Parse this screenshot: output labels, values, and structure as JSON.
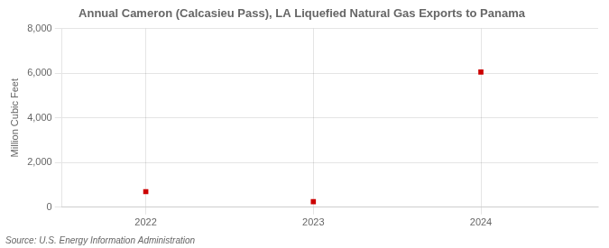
{
  "chart_data": {
    "type": "scatter",
    "title": "Annual Cameron (Calcasieu Pass), LA Liquefied Natural Gas Exports to Panama",
    "ylabel": "Million Cubic Feet",
    "source": "Source: U.S. Energy Information Administration",
    "x": [
      2022,
      2023,
      2024
    ],
    "values": [
      700,
      250,
      6050
    ],
    "color": "#cc0000",
    "marker": "square",
    "xlim": [
      2021.5,
      2024.7
    ],
    "xticks": [
      2022,
      2023,
      2024
    ],
    "ylim": [
      0,
      8000
    ],
    "yticks": [
      {
        "value": 0,
        "label": "0"
      },
      {
        "value": 2000,
        "label": "2,000"
      },
      {
        "value": 4000,
        "label": "4,000"
      },
      {
        "value": 6000,
        "label": "6,000"
      },
      {
        "value": 8000,
        "label": "8,000"
      }
    ],
    "grid": true
  }
}
